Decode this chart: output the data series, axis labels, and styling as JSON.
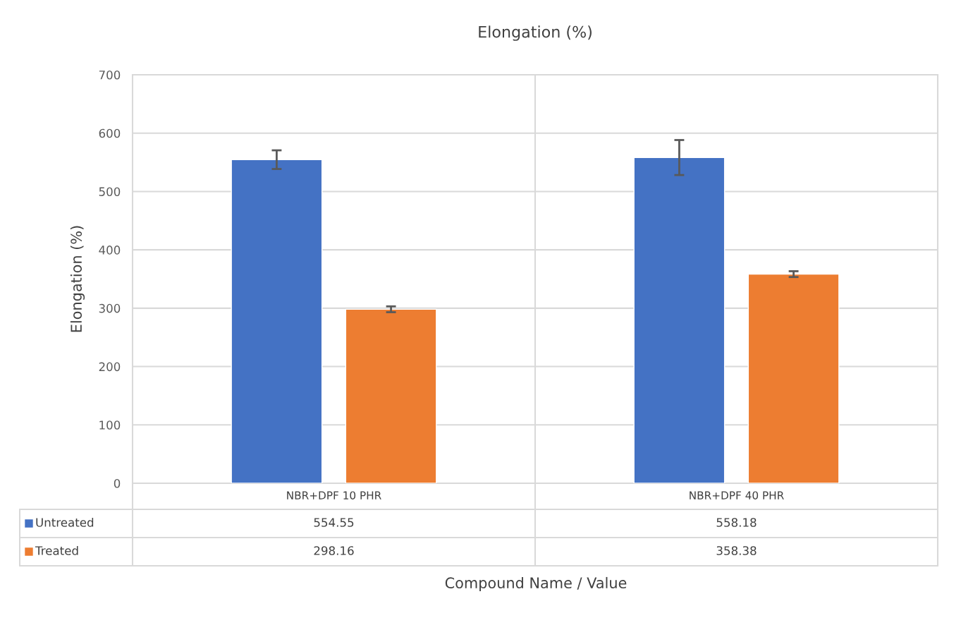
{
  "chart_data": {
    "type": "bar",
    "title": "Elongation (%)",
    "annotations": [
      "Compound Name / Value"
    ],
    "ylabel": "Elongation (%)",
    "categories": [
      "NBR+DPF 10 PHR",
      "NBR+DPF 40 PHR"
    ],
    "series": [
      {
        "name": "Untreated",
        "color": "#4472c4",
        "values": [
          554.55,
          558.18
        ],
        "errors": [
          16,
          30
        ]
      },
      {
        "name": "Treated",
        "color": "#ed7d31",
        "values": [
          298.16,
          358.38
        ],
        "errors": [
          5,
          5
        ]
      }
    ],
    "ylim": [
      0,
      700
    ],
    "yticks": [
      0,
      100,
      200,
      300,
      400,
      500,
      600,
      700
    ],
    "grid": "y",
    "legend": "bottom",
    "data_labels": true
  }
}
